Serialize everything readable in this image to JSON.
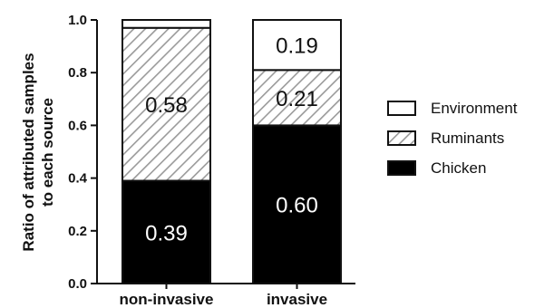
{
  "chart_data": {
    "type": "bar",
    "stacked": true,
    "ylabel_lines": [
      "Ratio of attributed samples",
      "to each source"
    ],
    "ylim": [
      0,
      1.0
    ],
    "yticks": [
      "0.0",
      "0.2",
      "0.4",
      "0.6",
      "0.8",
      "1.0"
    ],
    "categories": [
      "non-invasive",
      "invasive"
    ],
    "series": [
      {
        "name": "Chicken",
        "values": [
          0.39,
          0.6
        ],
        "labels": [
          "0.39",
          "0.60"
        ],
        "fill": "#000000",
        "pattern": "solid",
        "label_color": "#ffffff"
      },
      {
        "name": "Ruminants",
        "values": [
          0.58,
          0.21
        ],
        "labels": [
          "0.58",
          "0.21"
        ],
        "fill": "#ffffff",
        "pattern": "hatch",
        "label_color": "#111111"
      },
      {
        "name": "Environment",
        "values": [
          0.03,
          0.19
        ],
        "labels": [
          "",
          "0.19"
        ],
        "fill": "#ffffff",
        "pattern": "none",
        "label_color": "#111111"
      }
    ],
    "legend_order": [
      "Environment",
      "Ruminants",
      "Chicken"
    ],
    "legend_position": "right",
    "grid": false
  }
}
